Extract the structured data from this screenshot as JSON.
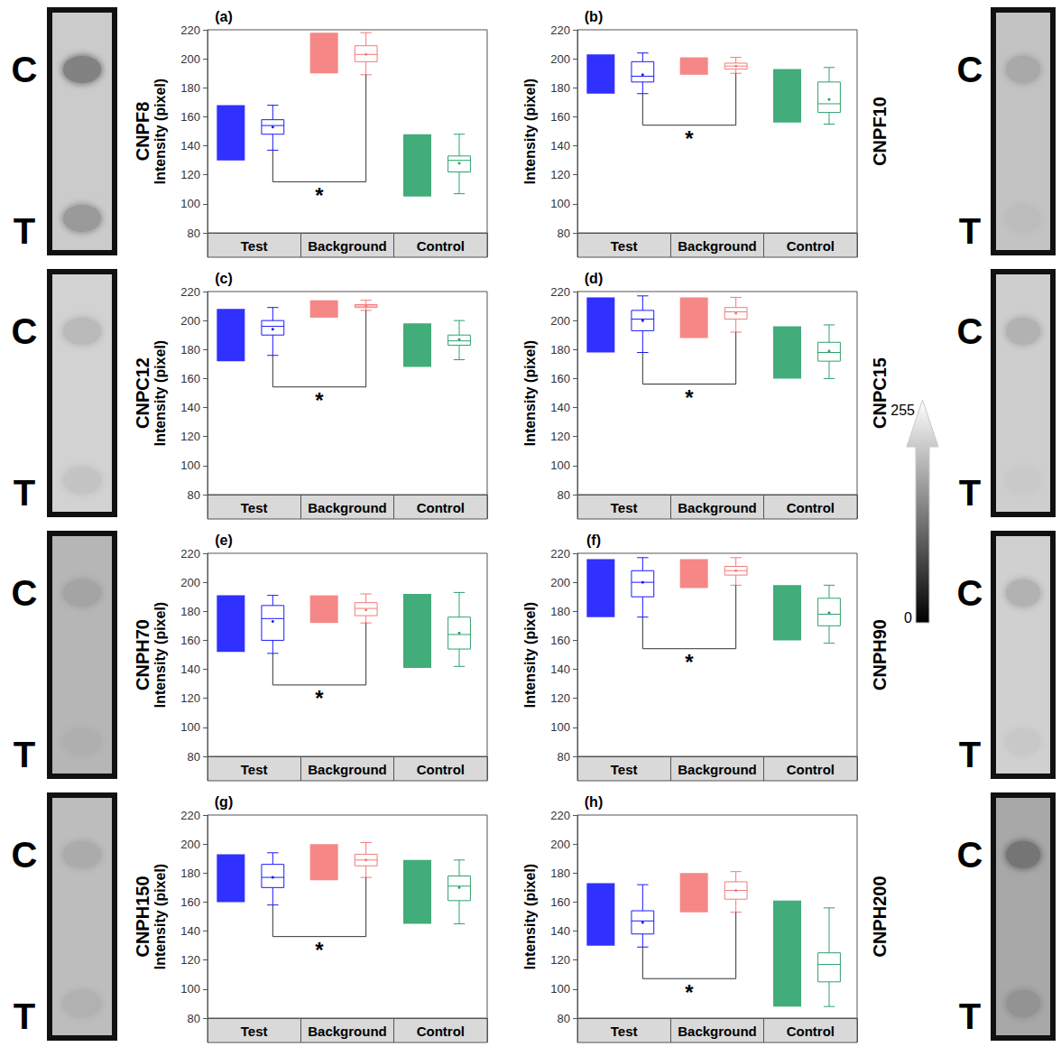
{
  "chart_data": [
    {
      "type": "boxplot",
      "panel": "(a)",
      "title": "CNPF8",
      "y_label": "Intensity (pixel)",
      "categories": [
        "Test",
        "Background",
        "Control"
      ],
      "ylim": [
        80,
        220
      ],
      "yticks": [
        80,
        100,
        120,
        140,
        160,
        180,
        200,
        220
      ],
      "annotation": "*",
      "strip_labels": [
        "C",
        "T"
      ],
      "series": [
        {
          "name": "Test",
          "color": "#1a1aff",
          "points": [
            130,
            168
          ],
          "box": [
            137,
            148,
            154,
            158,
            168
          ],
          "mean": 153
        },
        {
          "name": "Background",
          "color": "#f47a7a",
          "points": [
            190,
            218
          ],
          "box": [
            189,
            198,
            203,
            209,
            218
          ],
          "mean": 203
        },
        {
          "name": "Control",
          "color": "#2ea36b",
          "points": [
            105,
            148
          ],
          "box": [
            107,
            122,
            130,
            133,
            148
          ],
          "mean": 128
        }
      ]
    },
    {
      "type": "boxplot",
      "panel": "(b)",
      "title": "CNPF10",
      "y_label": "Intensity (pixel)",
      "categories": [
        "Test",
        "Background",
        "Control"
      ],
      "ylim": [
        80,
        220
      ],
      "yticks": [
        80,
        100,
        120,
        140,
        160,
        180,
        200,
        220
      ],
      "annotation": "*",
      "strip_labels": [
        "C",
        "T"
      ],
      "series": [
        {
          "name": "Test",
          "color": "#1a1aff",
          "points": [
            176,
            203
          ],
          "box": [
            176,
            184,
            188,
            198,
            204
          ],
          "mean": 189
        },
        {
          "name": "Background",
          "color": "#f47a7a",
          "points": [
            189,
            201
          ],
          "box": [
            190,
            193,
            195,
            197,
            201
          ],
          "mean": 195
        },
        {
          "name": "Control",
          "color": "#2ea36b",
          "points": [
            156,
            193
          ],
          "box": [
            155,
            163,
            169,
            184,
            194
          ],
          "mean": 172
        }
      ]
    },
    {
      "type": "boxplot",
      "panel": "(c)",
      "title": "CNPC12",
      "y_label": "Intensity (pixel)",
      "categories": [
        "Test",
        "Background",
        "Control"
      ],
      "ylim": [
        80,
        220
      ],
      "yticks": [
        80,
        100,
        120,
        140,
        160,
        180,
        200,
        220
      ],
      "annotation": "*",
      "strip_labels": [
        "C",
        "T"
      ],
      "series": [
        {
          "name": "Test",
          "color": "#1a1aff",
          "points": [
            172,
            208
          ],
          "box": [
            176,
            190,
            196,
            200,
            209
          ],
          "mean": 194
        },
        {
          "name": "Background",
          "color": "#f47a7a",
          "points": [
            202,
            214
          ],
          "box": [
            207,
            209,
            210,
            211,
            214
          ],
          "mean": 210
        },
        {
          "name": "Control",
          "color": "#2ea36b",
          "points": [
            168,
            198
          ],
          "box": [
            173,
            183,
            186,
            190,
            200
          ],
          "mean": 187
        }
      ]
    },
    {
      "type": "boxplot",
      "panel": "(d)",
      "title": "CNPC15",
      "y_label": "Intensity (pixel)",
      "categories": [
        "Test",
        "Background",
        "Control"
      ],
      "ylim": [
        80,
        220
      ],
      "yticks": [
        80,
        100,
        120,
        140,
        160,
        180,
        200,
        220
      ],
      "annotation": "*",
      "strip_labels": [
        "C",
        "T"
      ],
      "series": [
        {
          "name": "Test",
          "color": "#1a1aff",
          "points": [
            178,
            216
          ],
          "box": [
            178,
            193,
            201,
            207,
            217
          ],
          "mean": 200
        },
        {
          "name": "Background",
          "color": "#f47a7a",
          "points": [
            188,
            216
          ],
          "box": [
            192,
            201,
            206,
            209,
            216
          ],
          "mean": 205
        },
        {
          "name": "Control",
          "color": "#2ea36b",
          "points": [
            160,
            196
          ],
          "box": [
            160,
            172,
            178,
            185,
            197
          ],
          "mean": 179
        }
      ]
    },
    {
      "type": "boxplot",
      "panel": "(e)",
      "title": "CNPH70",
      "y_label": "Intensity (pixel)",
      "categories": [
        "Test",
        "Background",
        "Control"
      ],
      "ylim": [
        80,
        220
      ],
      "yticks": [
        80,
        100,
        120,
        140,
        160,
        180,
        200,
        220
      ],
      "annotation": "*",
      "strip_labels": [
        "C",
        "T"
      ],
      "series": [
        {
          "name": "Test",
          "color": "#1a1aff",
          "points": [
            152,
            191
          ],
          "box": [
            151,
            160,
            175,
            184,
            191
          ],
          "mean": 173
        },
        {
          "name": "Background",
          "color": "#f47a7a",
          "points": [
            172,
            191
          ],
          "box": [
            172,
            177,
            182,
            186,
            192
          ],
          "mean": 181
        },
        {
          "name": "Control",
          "color": "#2ea36b",
          "points": [
            141,
            192
          ],
          "box": [
            142,
            154,
            164,
            176,
            193
          ],
          "mean": 165
        }
      ]
    },
    {
      "type": "boxplot",
      "panel": "(f)",
      "title": "CNPH90",
      "y_label": "Intensity (pixel)",
      "categories": [
        "Test",
        "Background",
        "Control"
      ],
      "ylim": [
        80,
        220
      ],
      "yticks": [
        80,
        100,
        120,
        140,
        160,
        180,
        200,
        220
      ],
      "annotation": "*",
      "strip_labels": [
        "C",
        "T"
      ],
      "series": [
        {
          "name": "Test",
          "color": "#1a1aff",
          "points": [
            176,
            216
          ],
          "box": [
            176,
            190,
            200,
            208,
            217
          ],
          "mean": 200
        },
        {
          "name": "Background",
          "color": "#f47a7a",
          "points": [
            196,
            216
          ],
          "box": [
            198,
            205,
            208,
            211,
            217
          ],
          "mean": 208
        },
        {
          "name": "Control",
          "color": "#2ea36b",
          "points": [
            160,
            198
          ],
          "box": [
            158,
            170,
            178,
            189,
            198
          ],
          "mean": 179
        }
      ]
    },
    {
      "type": "boxplot",
      "panel": "(g)",
      "title": "CNPH150",
      "y_label": "Intensity (pixel)",
      "categories": [
        "Test",
        "Background",
        "Control"
      ],
      "ylim": [
        80,
        220
      ],
      "yticks": [
        80,
        100,
        120,
        140,
        160,
        180,
        200,
        220
      ],
      "annotation": "*",
      "strip_labels": [
        "C",
        "T"
      ],
      "series": [
        {
          "name": "Test",
          "color": "#1a1aff",
          "points": [
            160,
            193
          ],
          "box": [
            158,
            170,
            177,
            186,
            194
          ],
          "mean": 177
        },
        {
          "name": "Background",
          "color": "#f47a7a",
          "points": [
            175,
            200
          ],
          "box": [
            177,
            185,
            189,
            193,
            201
          ],
          "mean": 189
        },
        {
          "name": "Control",
          "color": "#2ea36b",
          "points": [
            145,
            189
          ],
          "box": [
            145,
            161,
            171,
            178,
            189
          ],
          "mean": 170
        }
      ]
    },
    {
      "type": "boxplot",
      "panel": "(h)",
      "title": "CNPH200",
      "y_label": "Intensity (pixel)",
      "categories": [
        "Test",
        "Background",
        "Control"
      ],
      "ylim": [
        80,
        220
      ],
      "yticks": [
        80,
        100,
        120,
        140,
        160,
        180,
        200,
        220
      ],
      "annotation": "*",
      "strip_labels": [
        "C",
        "T"
      ],
      "series": [
        {
          "name": "Test",
          "color": "#1a1aff",
          "points": [
            130,
            173
          ],
          "box": [
            129,
            138,
            147,
            154,
            172
          ],
          "mean": 146
        },
        {
          "name": "Background",
          "color": "#f47a7a",
          "points": [
            153,
            180
          ],
          "box": [
            153,
            162,
            168,
            174,
            181
          ],
          "mean": 168
        },
        {
          "name": "Control",
          "color": "#2ea36b",
          "points": [
            88,
            161
          ],
          "box": [
            88,
            105,
            117,
            125,
            156
          ],
          "mean": 117
        }
      ]
    }
  ],
  "colorbar": {
    "min": 0,
    "max": 255
  }
}
